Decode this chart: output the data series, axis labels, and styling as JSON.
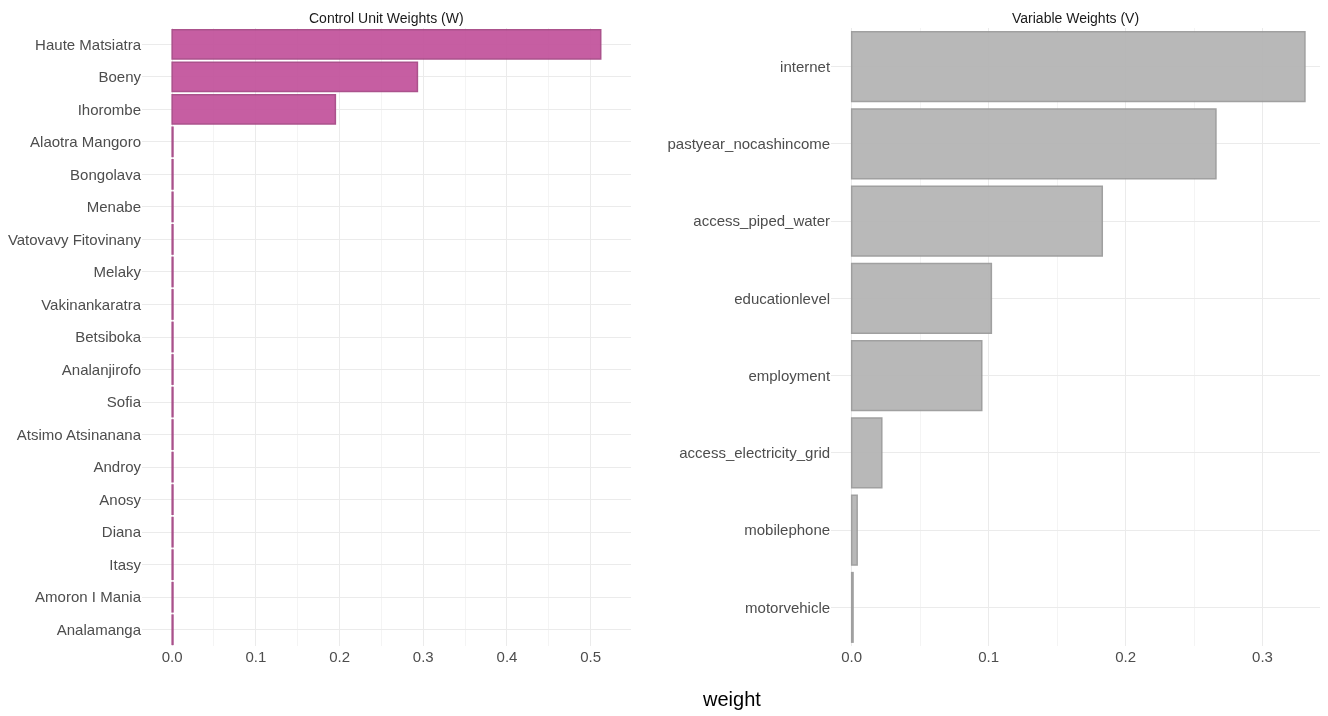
{
  "chart_data": [
    {
      "type": "bar",
      "orientation": "horizontal",
      "title": "Control Unit Weights (W)",
      "categories": [
        "Haute Matsiatra",
        "Boeny",
        "Ihorombe",
        "Alaotra Mangoro",
        "Bongolava",
        "Menabe",
        "Vatovavy Fitovinany",
        "Melaky",
        "Vakinankaratra",
        "Betsiboka",
        "Analanjirofo",
        "Sofia",
        "Atsimo Atsinanana",
        "Androy",
        "Anosy",
        "Diana",
        "Itasy",
        "Amoron I Mania",
        "Analamanga"
      ],
      "series": [
        {
          "color": "#c2519b",
          "values": [
            0.512,
            0.293,
            0.195,
            0.001,
            0.001,
            0.001,
            0.001,
            0.001,
            0.001,
            0.001,
            0.001,
            0.001,
            0.001,
            0.001,
            0.001,
            0.001,
            0.001,
            0.001,
            0.001
          ]
        }
      ],
      "xlim": [
        -0.036,
        0.548
      ],
      "xticks": [
        {
          "value": 0,
          "label": "0.0"
        },
        0.1,
        0.2,
        0.3,
        0.4,
        0.5
      ],
      "grid": true
    },
    {
      "type": "bar",
      "orientation": "horizontal",
      "title": "Variable Weights (V)",
      "xlabel": "weight",
      "categories": [
        "internet",
        "pastyear_nocashincome",
        "access_piped_water",
        "educationlevel",
        "employment",
        "access_electricity_grid",
        "mobilephone",
        "motorvehicle"
      ],
      "series": [
        {
          "color": "#b3b3b3",
          "values": [
            0.331,
            0.266,
            0.183,
            0.102,
            0.095,
            0.022,
            0.004,
            0.001
          ]
        }
      ],
      "xlim": [
        -0.015,
        0.342
      ],
      "xticks": [
        {
          "value": 0,
          "label": "0.0"
        },
        0.1,
        0.2,
        0.3
      ],
      "grid": true
    }
  ]
}
